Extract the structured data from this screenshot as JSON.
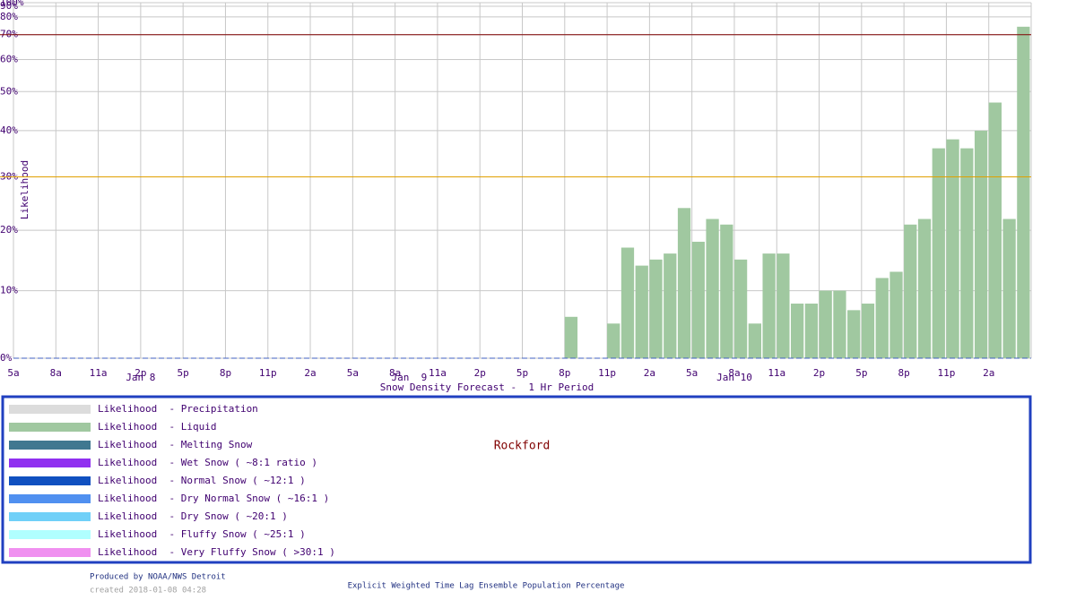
{
  "chart_data": {
    "type": "bar",
    "title": "Snow Density Forecast -  1 Hr Period",
    "y_label": "Likelihood",
    "location": "Rockford",
    "producer": "Produced by NOAA/NWS Detroit",
    "created": "created 2018-01-08 04:28",
    "footer": "Explicit Weighted Time Lag Ensemble Population Percentage",
    "yscale": "quadratic",
    "grid": true,
    "ylim": [
      0,
      100
    ],
    "yticks": [
      {
        "value": 0,
        "label": "0%"
      },
      {
        "value": 10,
        "label": "10%"
      },
      {
        "value": 20,
        "label": "20%"
      },
      {
        "value": 30,
        "label": "30%"
      },
      {
        "value": 40,
        "label": "40%"
      },
      {
        "value": 50,
        "label": "50%"
      },
      {
        "value": 60,
        "label": "60%"
      },
      {
        "value": 70,
        "label": "70%"
      },
      {
        "value": 80,
        "label": "80%"
      },
      {
        "value": 90,
        "label": "90%"
      },
      {
        "value": 100,
        "label": "100%"
      }
    ],
    "reference_lines": [
      {
        "value": 70,
        "color": "#800000"
      },
      {
        "value": 30,
        "color": "#e0a000"
      }
    ],
    "categories": [
      "5a",
      null,
      null,
      "8a",
      null,
      null,
      "11a",
      null,
      null,
      "2p",
      null,
      null,
      "5p",
      null,
      null,
      "8p",
      null,
      null,
      "11p",
      null,
      null,
      "2a",
      null,
      null,
      "5a",
      null,
      null,
      "8a",
      null,
      null,
      "11a",
      null,
      null,
      "2p",
      null,
      null,
      "5p",
      null,
      null,
      "8p",
      null,
      null,
      "11p",
      null,
      null,
      "2a",
      null,
      null,
      "5a",
      null,
      null,
      "8a",
      null,
      null,
      "11a",
      null,
      null,
      "2p",
      null,
      null,
      "5p",
      null,
      null,
      "8p",
      null,
      null,
      "11p",
      null,
      null,
      "2a",
      null,
      null
    ],
    "date_labels": [
      null,
      null,
      null,
      null,
      null,
      null,
      null,
      null,
      null,
      "Jan 8",
      null,
      null,
      null,
      null,
      null,
      null,
      null,
      null,
      null,
      null,
      null,
      null,
      null,
      null,
      null,
      null,
      null,
      null,
      "Jan  9",
      null,
      null,
      null,
      null,
      null,
      null,
      null,
      null,
      null,
      null,
      null,
      null,
      null,
      null,
      null,
      null,
      null,
      null,
      null,
      null,
      null,
      null,
      "Jan 10",
      null,
      null,
      null,
      null,
      null,
      null,
      null,
      null,
      null,
      null,
      null,
      null,
      null,
      null,
      null,
      null,
      null,
      null,
      null,
      null
    ],
    "series": [
      {
        "name": "Likelihood  - Precipitation",
        "color": "#dcdcdc"
      },
      {
        "name": "Likelihood  - Liquid",
        "color": "#a0c8a0",
        "values": [
          0,
          0,
          0,
          0,
          0,
          0,
          0,
          0,
          0,
          0,
          0,
          0,
          0,
          0,
          0,
          0,
          0,
          0,
          0,
          0,
          0,
          0,
          0,
          0,
          0,
          0,
          0,
          0,
          0,
          0,
          0,
          0,
          0,
          0,
          0,
          0,
          0,
          0,
          0,
          6,
          0,
          0,
          5,
          17,
          14,
          15,
          16,
          24,
          18,
          22,
          21,
          15,
          5,
          16,
          16,
          8,
          8,
          10,
          10,
          7,
          8,
          12,
          13,
          21,
          22,
          36,
          38,
          36,
          40,
          47,
          22,
          74
        ]
      },
      {
        "name": "Likelihood  - Melting Snow",
        "color": "#407890"
      },
      {
        "name": "Likelihood  - Wet Snow ( ~8:1 ratio )",
        "color": "#9030f0"
      },
      {
        "name": "Likelihood  - Normal Snow ( ~12:1 )",
        "color": "#1050c0"
      },
      {
        "name": "Likelihood  - Dry Normal Snow ( ~16:1 )",
        "color": "#5090f0"
      },
      {
        "name": "Likelihood  - Dry Snow ( ~20:1 )",
        "color": "#70d0f8"
      },
      {
        "name": "Likelihood  - Fluffy Snow ( ~25:1 )",
        "color": "#b0ffff"
      },
      {
        "name": "Likelihood  - Very Fluffy Snow ( >30:1 )",
        "color": "#f090f0"
      }
    ]
  }
}
